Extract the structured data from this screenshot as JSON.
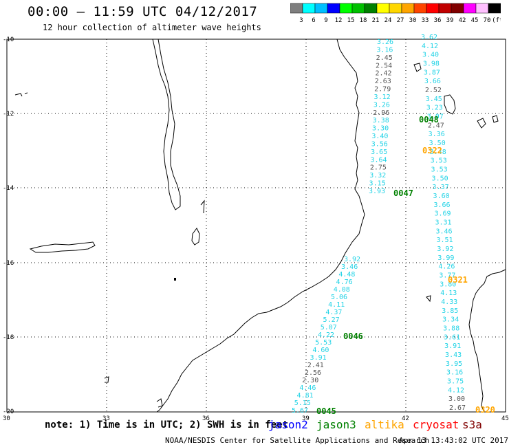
{
  "header": {
    "title": "00:00 – 11:59 UTC 04/12/2017",
    "subtitle": "12 hour collection of altimeter wave heights"
  },
  "color_scale": {
    "labels": [
      "3",
      "6",
      "9",
      "12",
      "15",
      "18",
      "21",
      "24",
      "27",
      "30",
      "33",
      "36",
      "39",
      "42",
      "45",
      "70",
      "(ft)"
    ],
    "colors": [
      "#7f7f7f",
      "#00ffff",
      "#00bfff",
      "#0000ff",
      "#00ff00",
      "#00c000",
      "#008000",
      "#ffff00",
      "#ffd700",
      "#ffa500",
      "#ff4500",
      "#ff0000",
      "#c00000",
      "#800000",
      "#ff00ff",
      "#ffc0ff",
      "#000000"
    ]
  },
  "axes": {
    "lat_labels": [
      "-10",
      "-12",
      "-14",
      "-16",
      "-18",
      "-20"
    ],
    "lon_labels": [
      "30",
      "33",
      "36",
      "39",
      "42",
      "45"
    ]
  },
  "tracks": [
    {
      "id": "0048",
      "label_color": "#008000",
      "values": [
        {
          "v": "3.26",
          "c": "cyan"
        },
        {
          "v": "3.16",
          "c": "cyan"
        },
        {
          "v": "2.45",
          "c": "gray"
        },
        {
          "v": "2.54",
          "c": "gray"
        },
        {
          "v": "2.42",
          "c": "gray"
        },
        {
          "v": "2.63",
          "c": "gray"
        },
        {
          "v": "2.79",
          "c": "gray"
        },
        {
          "v": "3.12",
          "c": "cyan"
        },
        {
          "v": "3.26",
          "c": "cyan"
        },
        {
          "v": "2.96",
          "c": "gray"
        },
        {
          "v": "3.38",
          "c": "cyan"
        },
        {
          "v": "3.30",
          "c": "cyan"
        },
        {
          "v": "3.40",
          "c": "cyan"
        },
        {
          "v": "3.56",
          "c": "cyan"
        },
        {
          "v": "3.65",
          "c": "cyan"
        },
        {
          "v": "3.64",
          "c": "cyan"
        },
        {
          "v": "2.75",
          "c": "gray"
        },
        {
          "v": "3.32",
          "c": "cyan"
        },
        {
          "v": "3.15",
          "c": "cyan"
        },
        {
          "v": "3.93",
          "c": "cyan"
        }
      ]
    },
    {
      "id": "0047",
      "label_color": "#008000",
      "values": [
        {
          "v": "3.62",
          "c": "cyan"
        },
        {
          "v": "4.12",
          "c": "cyan"
        },
        {
          "v": "3.40",
          "c": "cyan"
        },
        {
          "v": "3.98",
          "c": "cyan"
        },
        {
          "v": "3.87",
          "c": "cyan"
        },
        {
          "v": "3.66",
          "c": "cyan"
        },
        {
          "v": "2.52",
          "c": "gray"
        },
        {
          "v": "3.45",
          "c": "cyan"
        },
        {
          "v": "3.23",
          "c": "cyan"
        },
        {
          "v": "3.07",
          "c": "cyan"
        },
        {
          "v": "2.47",
          "c": "gray"
        },
        {
          "v": "3.36",
          "c": "cyan"
        },
        {
          "v": "3.50",
          "c": "cyan"
        },
        {
          "v": "3.48",
          "c": "cyan"
        },
        {
          "v": "3.53",
          "c": "cyan"
        },
        {
          "v": "3.53",
          "c": "cyan"
        },
        {
          "v": "3.50",
          "c": "cyan"
        },
        {
          "v": "3.37",
          "c": "cyan"
        },
        {
          "v": "3.60",
          "c": "cyan"
        },
        {
          "v": "3.66",
          "c": "cyan"
        },
        {
          "v": "3.69",
          "c": "cyan"
        },
        {
          "v": "3.31",
          "c": "cyan"
        },
        {
          "v": "3.46",
          "c": "cyan"
        },
        {
          "v": "3.51",
          "c": "cyan"
        },
        {
          "v": "3.92",
          "c": "cyan"
        },
        {
          "v": "3.99",
          "c": "cyan"
        },
        {
          "v": "4.26",
          "c": "cyan"
        },
        {
          "v": "3.77",
          "c": "cyan"
        },
        {
          "v": "3.80",
          "c": "cyan"
        },
        {
          "v": "4.13",
          "c": "cyan"
        },
        {
          "v": "4.33",
          "c": "cyan"
        },
        {
          "v": "3.85",
          "c": "cyan"
        },
        {
          "v": "3.34",
          "c": "cyan"
        },
        {
          "v": "3.88",
          "c": "cyan"
        },
        {
          "v": "3.61",
          "c": "cyan"
        },
        {
          "v": "3.91",
          "c": "cyan"
        },
        {
          "v": "3.43",
          "c": "cyan"
        },
        {
          "v": "3.95",
          "c": "cyan"
        },
        {
          "v": "3.16",
          "c": "cyan"
        },
        {
          "v": "3.75",
          "c": "cyan"
        },
        {
          "v": "4.12",
          "c": "cyan"
        },
        {
          "v": "3.00",
          "c": "gray"
        },
        {
          "v": "2.67",
          "c": "gray"
        }
      ]
    },
    {
      "id": "0046",
      "label_color": "#008000",
      "values": [
        {
          "v": "3.92",
          "c": "cyan"
        },
        {
          "v": "3.46",
          "c": "cyan"
        },
        {
          "v": "4.48",
          "c": "cyan"
        },
        {
          "v": "4.76",
          "c": "cyan"
        },
        {
          "v": "4.08",
          "c": "cyan"
        },
        {
          "v": "5.06",
          "c": "cyan"
        },
        {
          "v": "4.11",
          "c": "cyan"
        },
        {
          "v": "4.37",
          "c": "cyan"
        },
        {
          "v": "5.27",
          "c": "cyan"
        },
        {
          "v": "5.07",
          "c": "cyan"
        },
        {
          "v": "4.22",
          "c": "cyan"
        },
        {
          "v": "5.53",
          "c": "cyan"
        },
        {
          "v": "4.60",
          "c": "cyan"
        },
        {
          "v": "3.91",
          "c": "cyan"
        },
        {
          "v": "2.41",
          "c": "gray"
        },
        {
          "v": "2.56",
          "c": "gray"
        },
        {
          "v": "2.30",
          "c": "gray"
        },
        {
          "v": "4.46",
          "c": "cyan"
        },
        {
          "v": "4.81",
          "c": "cyan"
        },
        {
          "v": "5.15",
          "c": "cyan"
        },
        {
          "v": "5.67",
          "c": "cyan"
        }
      ]
    }
  ],
  "pass_labels": {
    "p0048": "0048",
    "p0322": "0322",
    "p0047": "0047",
    "p0321": "0321",
    "p0046": "0046",
    "p0045": "0045",
    "p0320": "0320"
  },
  "footer": {
    "note": "note: 1) Time is in UTC; 2) SWH is in feet",
    "satellites": [
      {
        "name": "jason2",
        "color": "#0000ff"
      },
      {
        "name": "jason3",
        "color": "#008000"
      },
      {
        "name": "altika",
        "color": "#ffa500"
      },
      {
        "name": "cryosat",
        "color": "#ff0000"
      },
      {
        "name": "s3a",
        "color": "#800000"
      }
    ],
    "credit": "NOAA/NESDIS Center for Satellite Applications and Research",
    "timestamp": "Apr 13 13:43:02 UTC 2017"
  }
}
